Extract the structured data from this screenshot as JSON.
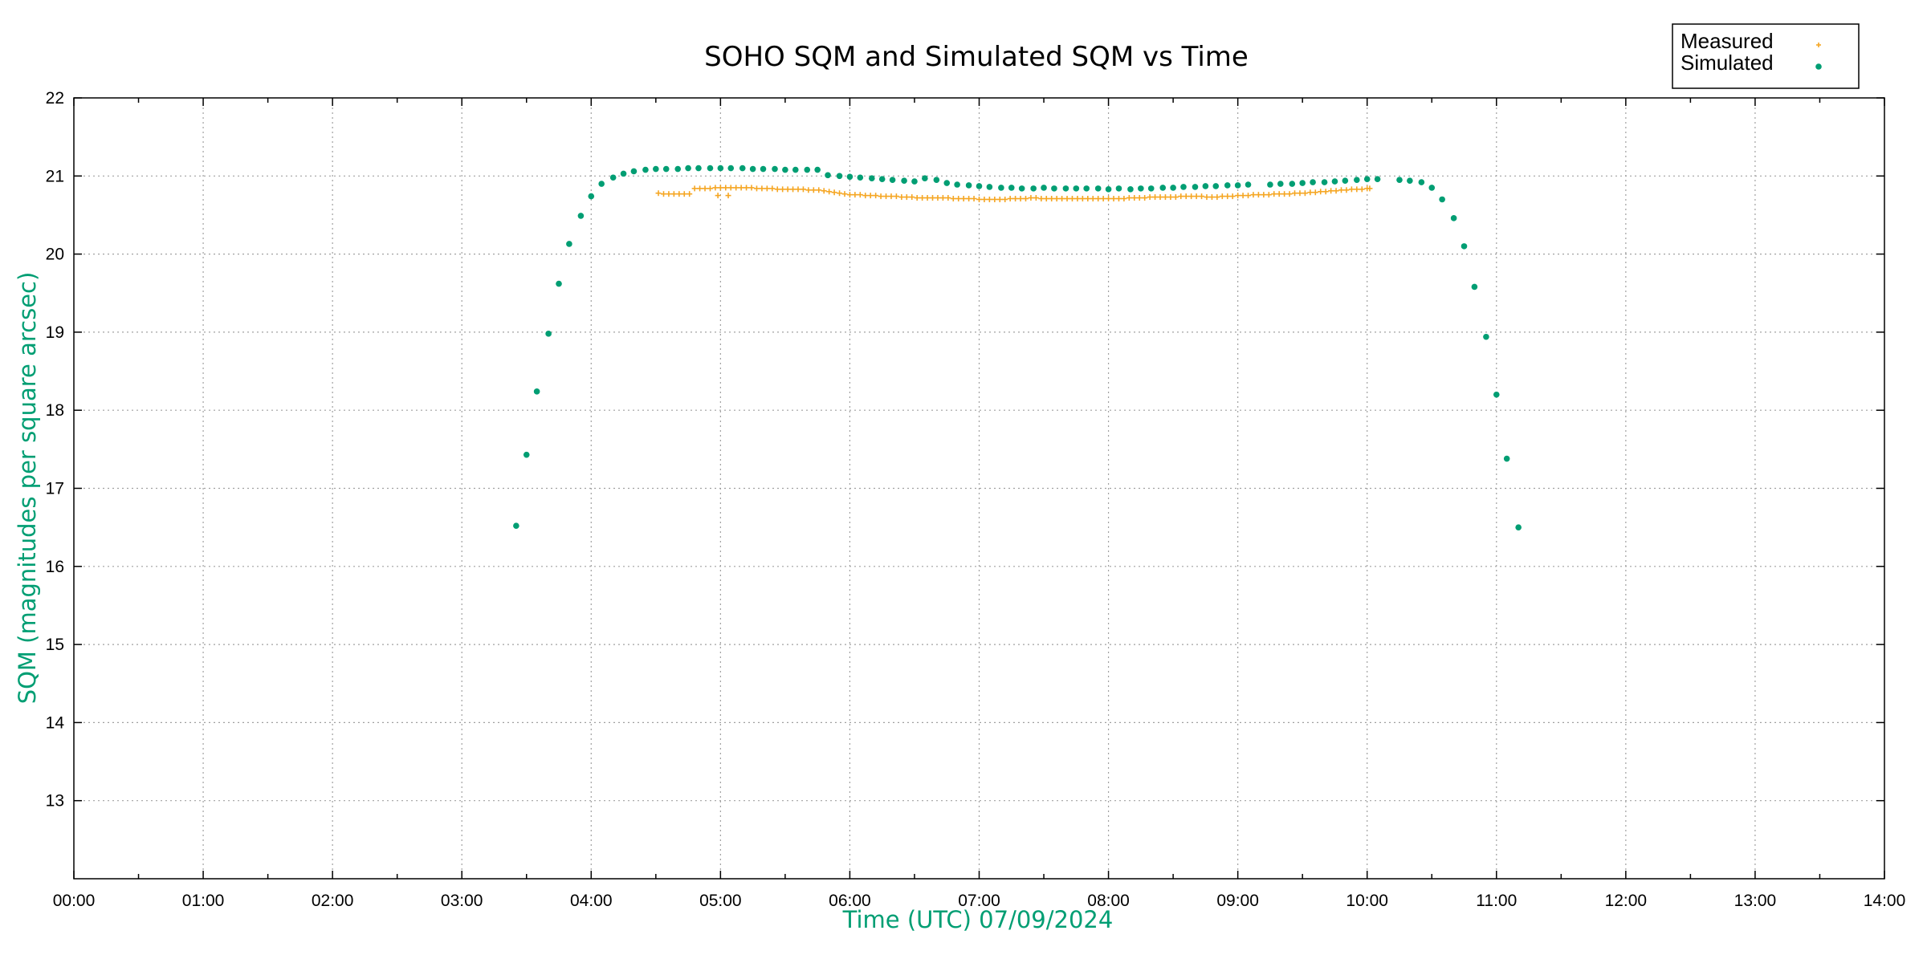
{
  "chart_data": {
    "type": "scatter",
    "title": "SOHO SQM and Simulated SQM vs Time",
    "xlabel": "Time (UTC)   07/09/2024",
    "ylabel": "SQM (magnitudes per square arcsec)",
    "x_unit": "hours UTC",
    "xlim": [
      0,
      14
    ],
    "ylim": [
      12,
      22
    ],
    "x_ticks": [
      {
        "value": 0,
        "label": "00:00"
      },
      {
        "value": 1,
        "label": "01:00"
      },
      {
        "value": 2,
        "label": "02:00"
      },
      {
        "value": 3,
        "label": "03:00"
      },
      {
        "value": 4,
        "label": "04:00"
      },
      {
        "value": 5,
        "label": "05:00"
      },
      {
        "value": 6,
        "label": "06:00"
      },
      {
        "value": 7,
        "label": "07:00"
      },
      {
        "value": 8,
        "label": "08:00"
      },
      {
        "value": 9,
        "label": "09:00"
      },
      {
        "value": 10,
        "label": "10:00"
      },
      {
        "value": 11,
        "label": "11:00"
      },
      {
        "value": 12,
        "label": "12:00"
      },
      {
        "value": 13,
        "label": "13:00"
      },
      {
        "value": 14,
        "label": "14:00"
      }
    ],
    "y_ticks": [
      {
        "value": 13,
        "label": "13"
      },
      {
        "value": 14,
        "label": "14"
      },
      {
        "value": 15,
        "label": "15"
      },
      {
        "value": 16,
        "label": "16"
      },
      {
        "value": 17,
        "label": "17"
      },
      {
        "value": 18,
        "label": "18"
      },
      {
        "value": 19,
        "label": "19"
      },
      {
        "value": 20,
        "label": "20"
      },
      {
        "value": 21,
        "label": "21"
      },
      {
        "value": 22,
        "label": "22"
      }
    ],
    "grid": true,
    "legend_position": "top-right",
    "series": [
      {
        "name": "Measured",
        "marker": "plus",
        "color": "#f5a623",
        "x": [
          4.52,
          4.56,
          4.6,
          4.64,
          4.68,
          4.72,
          4.76,
          4.8,
          4.84,
          4.88,
          4.92,
          4.96,
          5.0,
          5.04,
          5.08,
          5.12,
          5.16,
          5.2,
          5.24,
          5.28,
          5.32,
          5.36,
          5.4,
          5.44,
          5.48,
          5.52,
          5.56,
          5.6,
          5.64,
          5.68,
          5.72,
          5.76,
          5.8,
          5.84,
          5.88,
          5.92,
          5.96,
          6.0,
          6.04,
          6.08,
          6.12,
          6.16,
          6.2,
          6.24,
          6.28,
          6.32,
          6.36,
          6.4,
          6.44,
          6.48,
          6.52,
          6.56,
          6.6,
          6.64,
          6.68,
          6.72,
          6.76,
          6.8,
          6.84,
          6.88,
          6.92,
          6.96,
          7.0,
          7.04,
          7.08,
          7.12,
          7.16,
          7.2,
          7.24,
          7.28,
          7.32,
          7.36,
          7.4,
          7.44,
          7.48,
          7.52,
          7.56,
          7.6,
          7.64,
          7.68,
          7.72,
          7.76,
          7.8,
          7.84,
          7.88,
          7.92,
          7.96,
          8.0,
          8.04,
          8.08,
          8.12,
          8.16,
          8.2,
          8.24,
          8.28,
          8.32,
          8.36,
          8.4,
          8.44,
          8.48,
          8.52,
          8.56,
          8.6,
          8.64,
          8.68,
          8.72,
          8.76,
          8.8,
          8.84,
          8.88,
          8.92,
          8.96,
          9.0,
          9.04,
          9.08,
          9.12,
          9.16,
          9.2,
          9.24,
          9.28,
          9.32,
          9.36,
          9.4,
          9.44,
          9.48,
          9.52,
          9.56,
          9.6,
          9.64,
          9.68,
          9.72,
          9.76,
          9.8,
          9.84,
          9.88,
          9.92,
          9.96,
          10.0,
          10.02,
          4.98,
          5.06
        ],
        "y": [
          20.78,
          20.77,
          20.77,
          20.77,
          20.77,
          20.77,
          20.77,
          20.84,
          20.84,
          20.84,
          20.84,
          20.85,
          20.85,
          20.85,
          20.85,
          20.85,
          20.85,
          20.85,
          20.85,
          20.84,
          20.84,
          20.84,
          20.84,
          20.83,
          20.83,
          20.83,
          20.83,
          20.83,
          20.83,
          20.82,
          20.82,
          20.82,
          20.81,
          20.8,
          20.79,
          20.78,
          20.77,
          20.76,
          20.76,
          20.76,
          20.75,
          20.75,
          20.75,
          20.74,
          20.74,
          20.74,
          20.74,
          20.73,
          20.73,
          20.73,
          20.72,
          20.72,
          20.72,
          20.72,
          20.72,
          20.72,
          20.72,
          20.71,
          20.71,
          20.71,
          20.71,
          20.71,
          20.7,
          20.7,
          20.7,
          20.7,
          20.7,
          20.7,
          20.71,
          20.71,
          20.71,
          20.71,
          20.72,
          20.72,
          20.71,
          20.71,
          20.71,
          20.71,
          20.71,
          20.71,
          20.71,
          20.71,
          20.71,
          20.71,
          20.71,
          20.71,
          20.71,
          20.71,
          20.71,
          20.71,
          20.71,
          20.72,
          20.72,
          20.72,
          20.72,
          20.73,
          20.73,
          20.73,
          20.73,
          20.73,
          20.73,
          20.74,
          20.74,
          20.74,
          20.74,
          20.74,
          20.73,
          20.73,
          20.73,
          20.74,
          20.74,
          20.74,
          20.75,
          20.75,
          20.75,
          20.76,
          20.76,
          20.76,
          20.76,
          20.77,
          20.77,
          20.77,
          20.77,
          20.78,
          20.78,
          20.78,
          20.79,
          20.79,
          20.8,
          20.8,
          20.81,
          20.81,
          20.82,
          20.82,
          20.83,
          20.83,
          20.83,
          20.84,
          20.84,
          20.75,
          20.75
        ]
      },
      {
        "name": "Simulated",
        "marker": "dot",
        "color": "#009e73",
        "x": [
          3.42,
          3.5,
          3.58,
          3.67,
          3.75,
          3.83,
          3.92,
          4.0,
          4.08,
          4.17,
          4.25,
          4.33,
          4.42,
          4.5,
          4.58,
          4.67,
          4.75,
          4.83,
          4.92,
          5.0,
          5.08,
          5.17,
          5.25,
          5.33,
          5.42,
          5.5,
          5.58,
          5.67,
          5.75,
          5.83,
          5.92,
          6.0,
          6.08,
          6.17,
          6.25,
          6.33,
          6.42,
          6.5,
          6.58,
          6.67,
          6.75,
          6.83,
          6.92,
          7.0,
          7.08,
          7.17,
          7.25,
          7.33,
          7.42,
          7.5,
          7.58,
          7.67,
          7.75,
          7.83,
          7.92,
          8.0,
          8.08,
          8.17,
          8.25,
          8.33,
          8.42,
          8.5,
          8.58,
          8.67,
          8.75,
          8.83,
          8.92,
          9.0,
          9.08,
          9.25,
          9.33,
          9.42,
          9.5,
          9.58,
          9.67,
          9.75,
          9.83,
          9.92,
          10.0,
          10.08,
          10.25,
          10.33,
          10.42,
          10.5,
          10.58,
          10.67,
          10.75,
          10.83,
          10.92,
          11.0,
          11.08,
          11.17
        ],
        "y": [
          16.52,
          17.43,
          18.24,
          18.98,
          19.62,
          20.13,
          20.49,
          20.74,
          20.9,
          20.98,
          21.03,
          21.06,
          21.08,
          21.09,
          21.09,
          21.09,
          21.1,
          21.1,
          21.1,
          21.1,
          21.1,
          21.1,
          21.09,
          21.09,
          21.09,
          21.08,
          21.08,
          21.08,
          21.08,
          21.01,
          21.0,
          20.99,
          20.98,
          20.97,
          20.96,
          20.95,
          20.94,
          20.93,
          20.97,
          20.95,
          20.91,
          20.89,
          20.88,
          20.87,
          20.86,
          20.85,
          20.85,
          20.84,
          20.84,
          20.85,
          20.84,
          20.84,
          20.84,
          20.84,
          20.84,
          20.83,
          20.84,
          20.83,
          20.84,
          20.84,
          20.85,
          20.85,
          20.86,
          20.86,
          20.87,
          20.87,
          20.88,
          20.88,
          20.89,
          20.89,
          20.9,
          20.9,
          20.91,
          20.92,
          20.92,
          20.93,
          20.94,
          20.95,
          20.96,
          20.96,
          20.95,
          20.94,
          20.92,
          20.85,
          20.7,
          20.46,
          20.1,
          19.58,
          18.94,
          18.2,
          17.38,
          16.5
        ]
      }
    ]
  },
  "colors": {
    "measured": "#f5a623",
    "simulated": "#009e73",
    "axis_label": "#009e73",
    "grid": "#a0a0a0"
  }
}
